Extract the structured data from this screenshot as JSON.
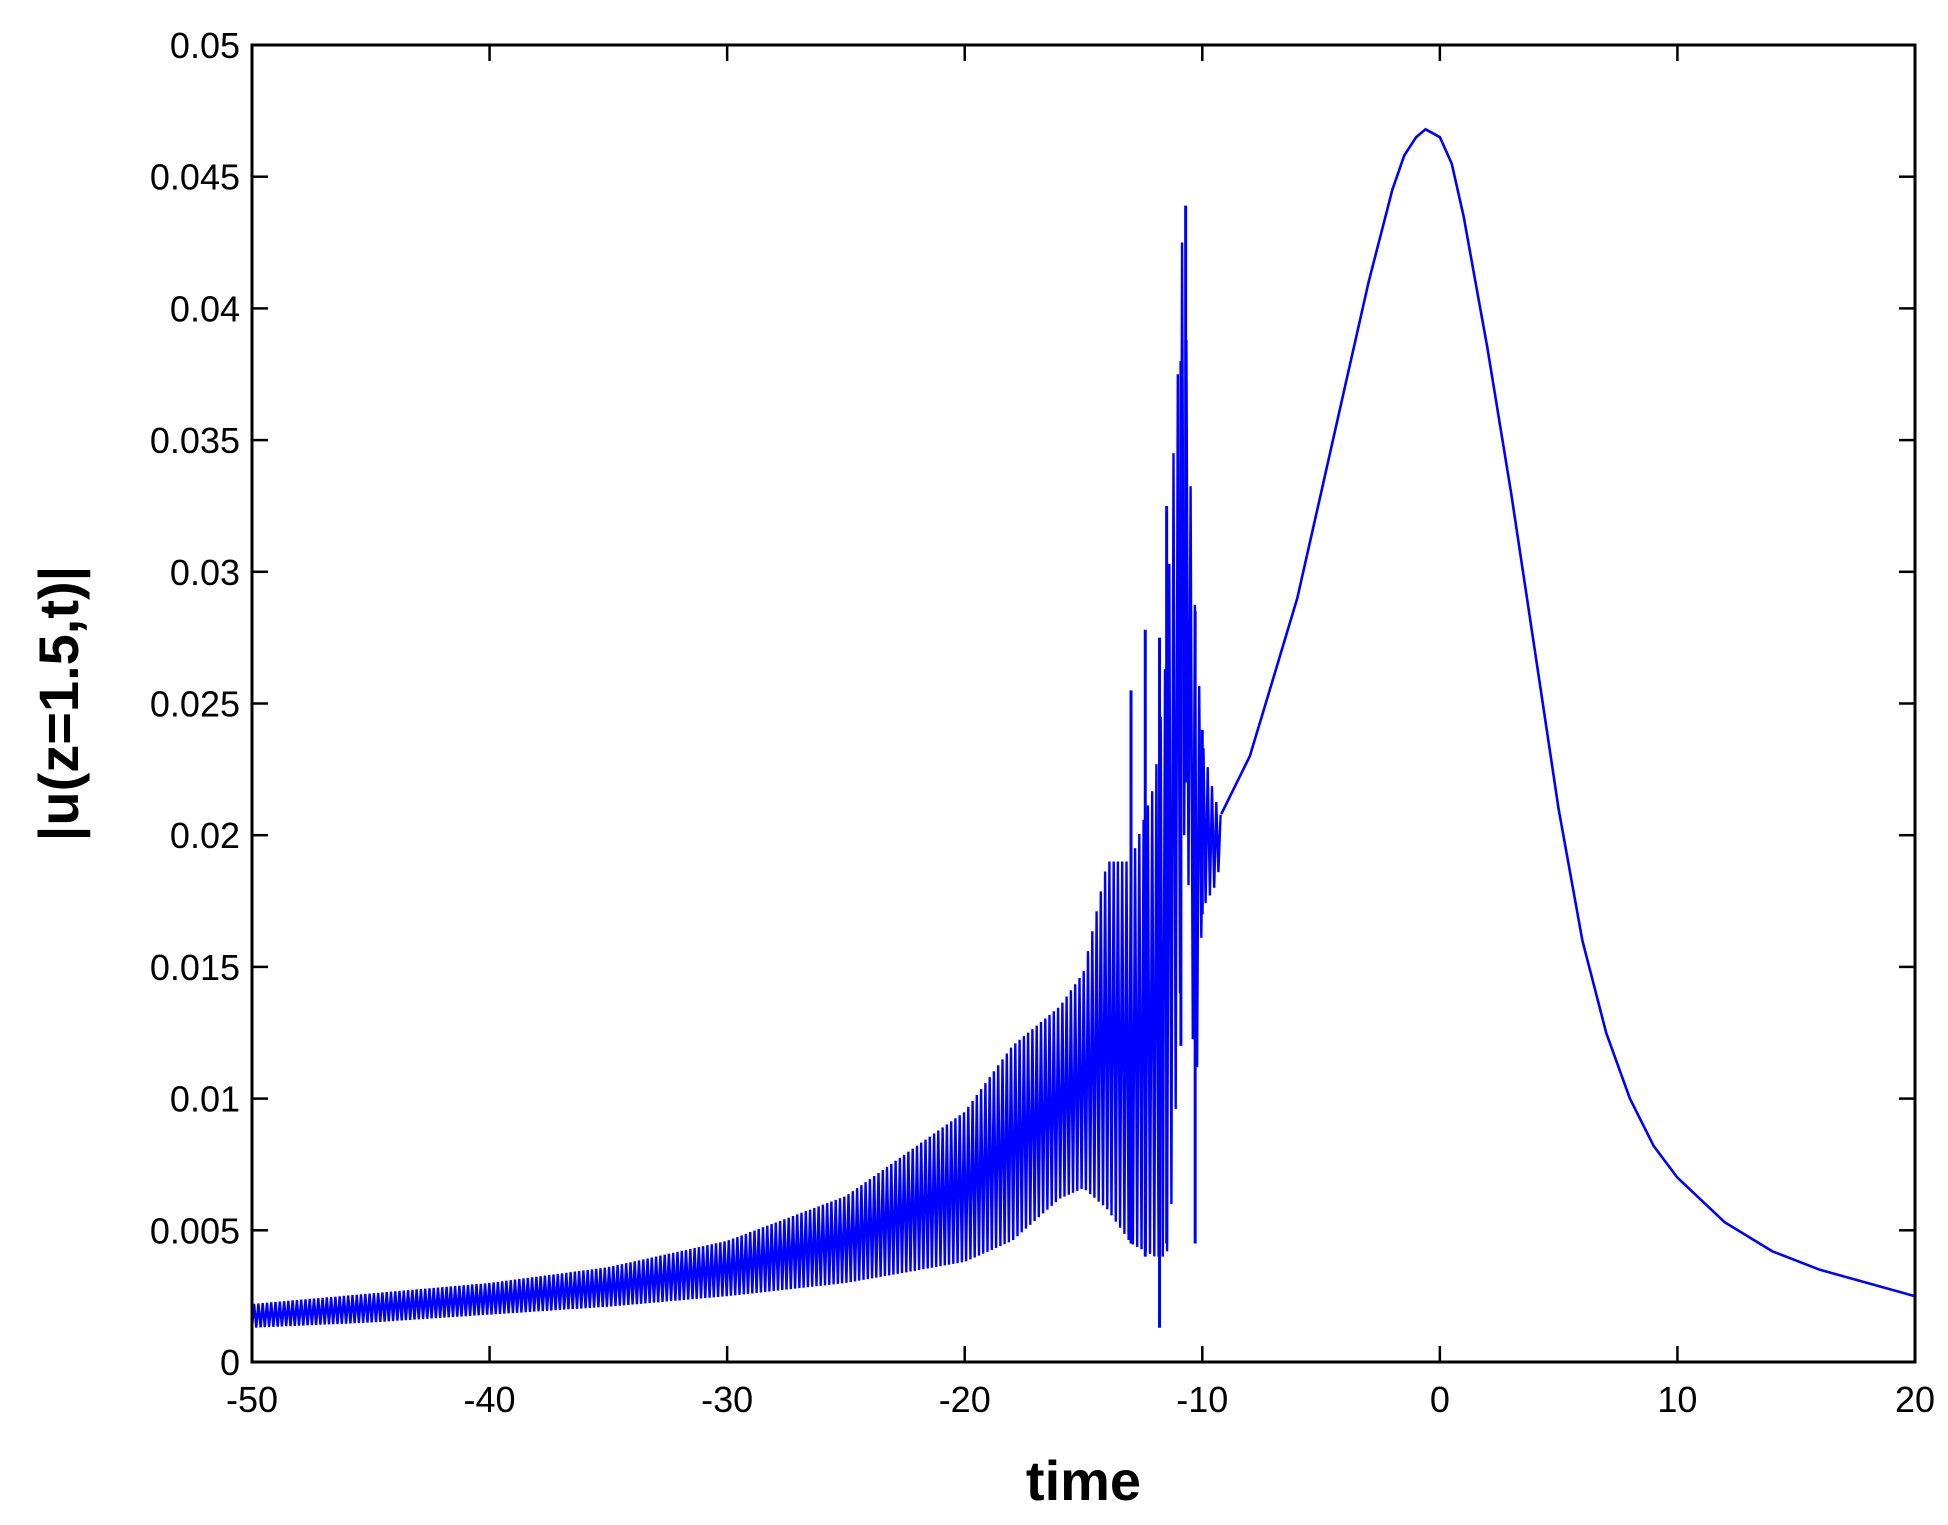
{
  "chart_data": {
    "type": "line",
    "title": "",
    "xlabel": "time",
    "ylabel": "|u(z=1.5,t)|",
    "xlim": [
      -50,
      20
    ],
    "ylim": [
      0,
      0.05
    ],
    "x_ticks": [
      -50,
      -40,
      -30,
      -20,
      -10,
      0,
      10,
      20
    ],
    "y_ticks": [
      0,
      0.005,
      0.01,
      0.015,
      0.02,
      0.025,
      0.03,
      0.035,
      0.04,
      0.045,
      0.05
    ],
    "x_tick_labels": [
      "-50",
      "-40",
      "-30",
      "-20",
      "-10",
      "0",
      "10",
      "20"
    ],
    "y_tick_labels": [
      "0",
      "0.005",
      "0.01",
      "0.015",
      "0.02",
      "0.025",
      "0.03",
      "0.035",
      "0.04",
      "0.045",
      "0.05"
    ],
    "grid": false,
    "legend": "none",
    "line_color": "#0000ff",
    "series": [
      {
        "x": [
          -50,
          -48,
          -46,
          -44,
          -42,
          -40,
          -38,
          -36,
          -34,
          -32,
          -30,
          -28,
          -26,
          -24,
          -22,
          -20,
          -18,
          -16,
          -15,
          -14,
          -13,
          -12.5,
          -12,
          -11.6,
          -11.3,
          -11,
          -10.8,
          -10.6,
          -10.4,
          -10.2,
          -10,
          -9.6,
          -9.2,
          -8,
          -7,
          -6,
          -5,
          -4,
          -3,
          -2,
          -1.5,
          -1,
          -0.6,
          0,
          0.5,
          1,
          1.5,
          2,
          3,
          4,
          5,
          6,
          7,
          8,
          9,
          10,
          12,
          14,
          16,
          18,
          20
        ],
        "y": [
          0.0017,
          0.0019,
          0.0021,
          0.0023,
          0.0025,
          0.0027,
          0.0029,
          0.0031,
          0.0034,
          0.0037,
          0.0041,
          0.0046,
          0.0052,
          0.0059,
          0.0068,
          0.0079,
          0.0093,
          0.0112,
          0.0125,
          0.0142,
          0.016,
          0.0175,
          0.0185,
          0.0195,
          0.021,
          0.03,
          0.04,
          0.033,
          0.026,
          0.022,
          0.0205,
          0.0204,
          0.0208,
          0.023,
          0.026,
          0.029,
          0.033,
          0.037,
          0.041,
          0.0445,
          0.0458,
          0.0465,
          0.0468,
          0.0465,
          0.0455,
          0.0435,
          0.041,
          0.0385,
          0.033,
          0.027,
          0.021,
          0.016,
          0.0125,
          0.01,
          0.0082,
          0.007,
          0.0053,
          0.0042,
          0.0035,
          0.003,
          0.0025
        ],
        "oscillation": {
          "x_range": [
            -50,
            -9.2
          ],
          "lower": [
            [
              -50,
              0.0013
            ],
            [
              -45,
              0.0015
            ],
            [
              -40,
              0.0018
            ],
            [
              -35,
              0.0021
            ],
            [
              -30,
              0.0025
            ],
            [
              -25,
              0.003
            ],
            [
              -20,
              0.0038
            ],
            [
              -18,
              0.0046
            ],
            [
              -16,
              0.0062
            ],
            [
              -15,
              0.0066
            ],
            [
              -14,
              0.0058
            ],
            [
              -13,
              0.0045
            ],
            [
              -12,
              0.004
            ],
            [
              -11.5,
              0.004
            ],
            [
              -11.3,
              0.006
            ],
            [
              -11,
              0.012
            ],
            [
              -10.7,
              0.022
            ],
            [
              -10.3,
              0.009
            ],
            [
              -10,
              0.0172
            ],
            [
              -9.5,
              0.018
            ],
            [
              -9.2,
              0.019
            ]
          ],
          "upper": [
            [
              -50,
              0.0022
            ],
            [
              -45,
              0.0026
            ],
            [
              -40,
              0.003
            ],
            [
              -35,
              0.0036
            ],
            [
              -30,
              0.0046
            ],
            [
              -25,
              0.0063
            ],
            [
              -20,
              0.0095
            ],
            [
              -18,
              0.012
            ],
            [
              -16,
              0.0135
            ],
            [
              -15,
              0.0148
            ],
            [
              -14,
              0.019
            ],
            [
              -13,
              0.019
            ],
            [
              -12,
              0.022
            ],
            [
              -11.5,
              0.027
            ],
            [
              -11.3,
              0.033
            ],
            [
              -11,
              0.038
            ],
            [
              -10.8,
              0.044
            ],
            [
              -10.6,
              0.036
            ],
            [
              -10.3,
              0.0285
            ],
            [
              -10,
              0.0235
            ],
            [
              -9.5,
              0.0215
            ],
            [
              -9.2,
              0.0207
            ]
          ],
          "spikes": [
            [
              -13,
              0.0255,
              0.0045
            ],
            [
              -12.4,
              0.0278,
              0.004
            ],
            [
              -11.8,
              0.0275,
              0.0013
            ],
            [
              -11.5,
              0.0325,
              0.0045
            ],
            [
              -10.9,
              0.038,
              0.012
            ],
            [
              -10.7,
              0.0439,
              0.022
            ],
            [
              -10.3,
              0.0285,
              0.0045
            ],
            [
              -10,
              0.024,
              0.017
            ]
          ]
        }
      }
    ]
  }
}
